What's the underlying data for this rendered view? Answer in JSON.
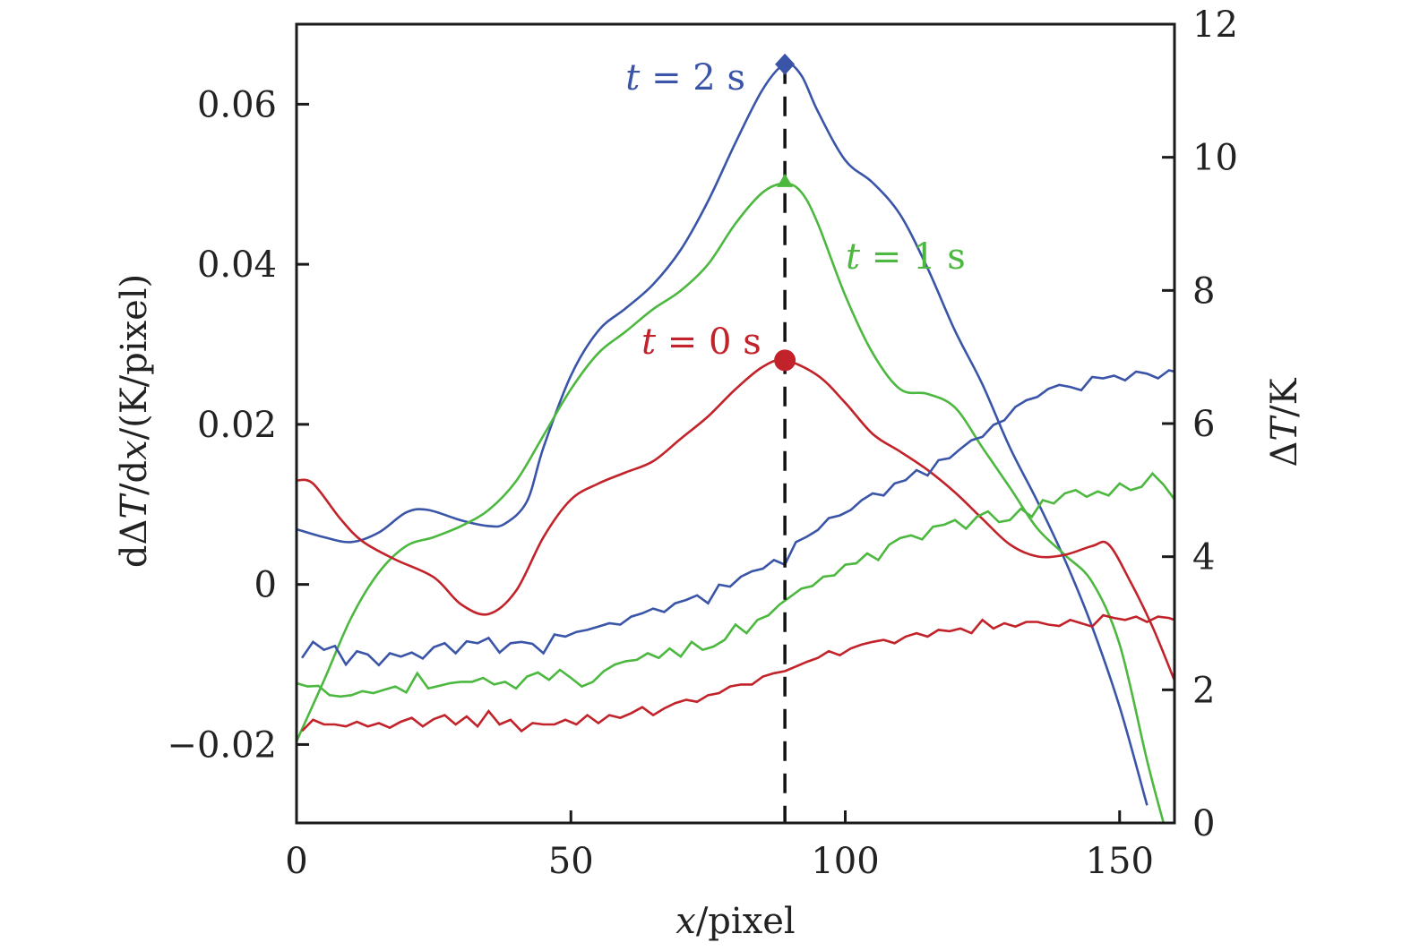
{
  "chart_data": {
    "type": "line",
    "title": "",
    "xlabel": "x/pixel",
    "xlabel_parts": {
      "var": "x",
      "unit": "/pixel"
    },
    "ylabel": "dΔT/dx/(K/pixel)",
    "ylabel_parts": {
      "pre": "dΔ",
      "var1": "T",
      "mid": "/d",
      "var2": "x",
      "unit": "/(K/pixel)"
    },
    "y2label": "ΔT/K",
    "y2label_parts": {
      "pre": "Δ",
      "var": "T",
      "unit": "/K"
    },
    "xlim": [
      0,
      160
    ],
    "ylim": [
      -0.0298,
      0.07
    ],
    "y2lim": [
      0,
      12
    ],
    "grid": false,
    "x_ticks": [
      0,
      50,
      100,
      150
    ],
    "x_tick_labels": [
      "0",
      "50",
      "100",
      "150"
    ],
    "y_ticks": [
      -0.02,
      0,
      0.02,
      0.04,
      0.06
    ],
    "y_tick_labels": [
      "−0.02",
      "0",
      "0.02",
      "0.04",
      "0.06"
    ],
    "y2_ticks": [
      0,
      2,
      4,
      6,
      8,
      10,
      12
    ],
    "y2_tick_labels": [
      "0",
      "2",
      "4",
      "6",
      "8",
      "10",
      "12"
    ],
    "reference_line": {
      "x": 89,
      "style": "dashed",
      "color": "#111111"
    },
    "colors": {
      "t0": "#c22229",
      "t1": "#4cb83f",
      "t2": "#3a55a8"
    },
    "annotations": [
      {
        "series": "t2",
        "var": "t",
        "text": " = 2 s",
        "label": "t = 2 s",
        "marker": "diamond",
        "x": 89,
        "y": 0.065
      },
      {
        "series": "t1",
        "var": "t",
        "text": " = 1 s",
        "label": "t = 1 s",
        "marker": "triangle",
        "x": 89,
        "y": 0.0501
      },
      {
        "series": "t0",
        "var": "t",
        "text": " = 0 s",
        "label": "t = 0 s",
        "marker": "circle",
        "x": 89,
        "y": 0.028
      }
    ],
    "series": [
      {
        "name": "dΔT/dx, t = 2 s",
        "key": "t2",
        "axis": "left",
        "smooth": true,
        "x": [
          0,
          5,
          10,
          15,
          20,
          24,
          30,
          35,
          38,
          42,
          45,
          50,
          55,
          60,
          65,
          70,
          75,
          80,
          85,
          89,
          92,
          95,
          100,
          105,
          110,
          115,
          120,
          125,
          130,
          135,
          140,
          145,
          150,
          155
        ],
        "y": [
          0.0069,
          0.0059,
          0.0053,
          0.0065,
          0.009,
          0.0093,
          0.008,
          0.0073,
          0.0076,
          0.0104,
          0.0171,
          0.0261,
          0.0317,
          0.0345,
          0.0375,
          0.0418,
          0.0479,
          0.0552,
          0.0619,
          0.065,
          0.0636,
          0.0591,
          0.053,
          0.0502,
          0.0462,
          0.0395,
          0.0317,
          0.025,
          0.0171,
          0.0104,
          0.0031,
          -0.0053,
          -0.0153,
          -0.0276
        ]
      },
      {
        "name": "dΔT/dx, t = 1 s",
        "key": "t1",
        "axis": "left",
        "smooth": true,
        "x": [
          0,
          5,
          10,
          15,
          20,
          25,
          30,
          35,
          40,
          45,
          50,
          55,
          60,
          65,
          70,
          75,
          80,
          85,
          89,
          92,
          95,
          100,
          105,
          110,
          115,
          120,
          125,
          130,
          135,
          140,
          145,
          150,
          155,
          158
        ],
        "y": [
          -0.0196,
          -0.012,
          -0.0041,
          0.0015,
          0.0048,
          0.0059,
          0.0073,
          0.0093,
          0.0129,
          0.0186,
          0.0244,
          0.0289,
          0.0316,
          0.0344,
          0.0367,
          0.04,
          0.0451,
          0.049,
          0.0501,
          0.049,
          0.0451,
          0.0361,
          0.0289,
          0.0244,
          0.0238,
          0.0221,
          0.0171,
          0.0121,
          0.007,
          0.0037,
          0.0003,
          -0.0075,
          -0.022,
          -0.0298
        ]
      },
      {
        "name": "dΔT/dx, t = 0 s",
        "key": "t0",
        "axis": "left",
        "smooth": true,
        "x": [
          0,
          3,
          8,
          12,
          18,
          25,
          30,
          35,
          40,
          45,
          50,
          55,
          60,
          65,
          70,
          75,
          80,
          85,
          89,
          95,
          100,
          105,
          110,
          115,
          120,
          125,
          130,
          135,
          140,
          145,
          148,
          152,
          156,
          160
        ],
        "y": [
          0.013,
          0.0126,
          0.0082,
          0.0054,
          0.0031,
          0.0009,
          -0.0025,
          -0.0037,
          -0.0008,
          0.0059,
          0.0106,
          0.0126,
          0.014,
          0.0154,
          0.0182,
          0.021,
          0.0244,
          0.0272,
          0.028,
          0.0261,
          0.0227,
          0.0188,
          0.0166,
          0.0143,
          0.0115,
          0.0082,
          0.005,
          0.0035,
          0.0037,
          0.0048,
          0.005,
          0.0003,
          -0.0053,
          -0.012
        ]
      },
      {
        "name": "ΔT, t = 2 s",
        "key": "t2",
        "axis": "right",
        "smooth": false,
        "x": [
          1,
          3,
          5,
          7,
          9,
          11,
          13,
          15,
          17,
          19,
          21,
          23,
          25,
          27,
          29,
          31,
          33,
          35,
          37,
          39,
          41,
          43,
          45,
          47,
          49,
          51,
          53,
          55,
          57,
          59,
          61,
          63,
          65,
          67,
          69,
          71,
          73,
          75,
          77,
          79,
          81,
          83,
          85,
          87,
          89,
          91,
          93,
          95,
          97,
          99,
          101,
          103,
          105,
          107,
          109,
          111,
          113,
          115,
          117,
          119,
          121,
          123,
          125,
          127,
          129,
          131,
          133,
          135,
          137,
          139,
          141,
          143,
          145,
          147,
          149,
          151,
          153,
          155,
          157,
          159,
          160
        ],
        "y": [
          2.48,
          2.72,
          2.6,
          2.66,
          2.38,
          2.58,
          2.53,
          2.37,
          2.55,
          2.5,
          2.56,
          2.47,
          2.64,
          2.7,
          2.55,
          2.73,
          2.7,
          2.78,
          2.56,
          2.7,
          2.72,
          2.69,
          2.55,
          2.83,
          2.8,
          2.87,
          2.9,
          2.95,
          3.0,
          2.98,
          3.1,
          3.15,
          3.22,
          3.17,
          3.3,
          3.35,
          3.42,
          3.3,
          3.58,
          3.55,
          3.7,
          3.78,
          3.82,
          3.95,
          3.88,
          4.22,
          4.3,
          4.4,
          4.58,
          4.62,
          4.7,
          4.85,
          4.95,
          4.92,
          5.1,
          5.15,
          5.3,
          5.22,
          5.45,
          5.48,
          5.62,
          5.75,
          5.8,
          5.98,
          6.05,
          6.25,
          6.35,
          6.4,
          6.52,
          6.58,
          6.55,
          6.5,
          6.7,
          6.68,
          6.72,
          6.65,
          6.78,
          6.75,
          6.68,
          6.8,
          6.78
        ]
      },
      {
        "name": "ΔT, t = 1 s",
        "key": "t1",
        "axis": "right",
        "smooth": false,
        "x": [
          0,
          2,
          4,
          6,
          8,
          10,
          12,
          14,
          16,
          18,
          20,
          22,
          24,
          26,
          28,
          30,
          32,
          34,
          36,
          38,
          40,
          42,
          44,
          46,
          48,
          50,
          52,
          54,
          56,
          58,
          60,
          62,
          64,
          66,
          68,
          70,
          72,
          74,
          76,
          78,
          80,
          82,
          84,
          86,
          88,
          90,
          92,
          94,
          96,
          98,
          100,
          102,
          104,
          106,
          108,
          110,
          112,
          114,
          116,
          118,
          120,
          122,
          124,
          126,
          128,
          130,
          132,
          134,
          136,
          138,
          140,
          142,
          144,
          146,
          148,
          150,
          152,
          154,
          156,
          158,
          160
        ],
        "y": [
          2.1,
          2.05,
          2.06,
          1.92,
          1.9,
          1.92,
          1.98,
          1.95,
          2.0,
          2.05,
          1.96,
          2.25,
          2.02,
          2.06,
          2.1,
          2.12,
          2.12,
          2.18,
          2.08,
          2.12,
          2.02,
          2.2,
          2.26,
          2.15,
          2.3,
          2.18,
          2.05,
          2.12,
          2.28,
          2.38,
          2.43,
          2.45,
          2.55,
          2.48,
          2.62,
          2.5,
          2.72,
          2.6,
          2.65,
          2.75,
          2.98,
          2.85,
          3.05,
          3.12,
          3.28,
          3.4,
          3.52,
          3.56,
          3.7,
          3.72,
          3.88,
          3.9,
          4.05,
          3.95,
          4.18,
          4.28,
          4.32,
          4.26,
          4.45,
          4.48,
          4.55,
          4.42,
          4.6,
          4.68,
          4.52,
          4.55,
          4.72,
          4.6,
          4.85,
          4.8,
          4.95,
          5.0,
          4.9,
          4.98,
          4.92,
          5.1,
          5.0,
          5.05,
          5.25,
          5.08,
          4.86
        ]
      },
      {
        "name": "ΔT, t = 0 s",
        "key": "t0",
        "axis": "right",
        "smooth": false,
        "x": [
          1,
          3,
          5,
          7,
          9,
          11,
          13,
          15,
          17,
          19,
          21,
          23,
          25,
          27,
          29,
          31,
          33,
          35,
          37,
          39,
          41,
          43,
          45,
          47,
          49,
          51,
          53,
          55,
          57,
          59,
          61,
          63,
          65,
          67,
          69,
          71,
          73,
          75,
          77,
          79,
          81,
          83,
          85,
          87,
          89,
          91,
          93,
          95,
          97,
          99,
          101,
          103,
          105,
          107,
          109,
          111,
          113,
          115,
          117,
          119,
          121,
          123,
          125,
          127,
          129,
          131,
          133,
          135,
          137,
          139,
          141,
          143,
          145,
          147,
          149,
          151,
          153,
          155,
          157,
          159,
          160
        ],
        "y": [
          1.38,
          1.55,
          1.48,
          1.48,
          1.45,
          1.52,
          1.45,
          1.5,
          1.43,
          1.52,
          1.58,
          1.45,
          1.56,
          1.62,
          1.48,
          1.6,
          1.45,
          1.68,
          1.48,
          1.55,
          1.38,
          1.5,
          1.48,
          1.48,
          1.55,
          1.48,
          1.62,
          1.5,
          1.62,
          1.58,
          1.65,
          1.74,
          1.62,
          1.72,
          1.8,
          1.85,
          1.82,
          1.92,
          1.95,
          2.05,
          2.08,
          2.08,
          2.2,
          2.25,
          2.28,
          2.35,
          2.42,
          2.48,
          2.58,
          2.52,
          2.62,
          2.68,
          2.72,
          2.75,
          2.7,
          2.8,
          2.85,
          2.8,
          2.9,
          2.88,
          2.92,
          2.85,
          3.05,
          2.92,
          3.0,
          2.95,
          3.02,
          3.02,
          2.98,
          2.96,
          3.05,
          3.0,
          2.95,
          3.12,
          3.08,
          3.05,
          3.1,
          3.02,
          3.1,
          3.08,
          3.05
        ]
      }
    ]
  }
}
